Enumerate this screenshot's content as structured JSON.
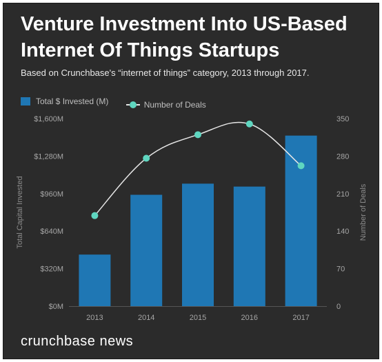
{
  "title_line1": "Venture Investment Into US-Based",
  "title_line2": "Internet Of Things Startups",
  "subtitle": "Based on Crunchbase's “internet of things” category, 2013 through 2017.",
  "brand": "crunchbase news",
  "colors": {
    "bar": "#1f77b4",
    "line": "#e6e6e6",
    "marker": "#5fd6c0",
    "background": "#2b2b2b"
  },
  "chart_data": {
    "type": "bar",
    "categories": [
      "2013",
      "2014",
      "2015",
      "2016",
      "2017"
    ],
    "series": [
      {
        "name": "Total $ Invested (M)",
        "type": "bar",
        "axis": "left",
        "values": [
          440,
          950,
          1045,
          1020,
          1455
        ]
      },
      {
        "name": "Number of Deals",
        "type": "line",
        "axis": "right",
        "values": [
          169,
          276,
          320,
          340,
          262
        ]
      }
    ],
    "ylabel": "Total Capital Invested",
    "y2label": "Number of Deals",
    "ylim": [
      0,
      1600
    ],
    "y2lim": [
      0,
      350
    ],
    "yticks": [
      "$0M",
      "$320M",
      "$640M",
      "$960M",
      "$1,280M",
      "$1,600M"
    ],
    "y2ticks": [
      "0",
      "70",
      "140",
      "210",
      "280",
      "350"
    ],
    "grid": false,
    "legend_position": "top-left"
  }
}
